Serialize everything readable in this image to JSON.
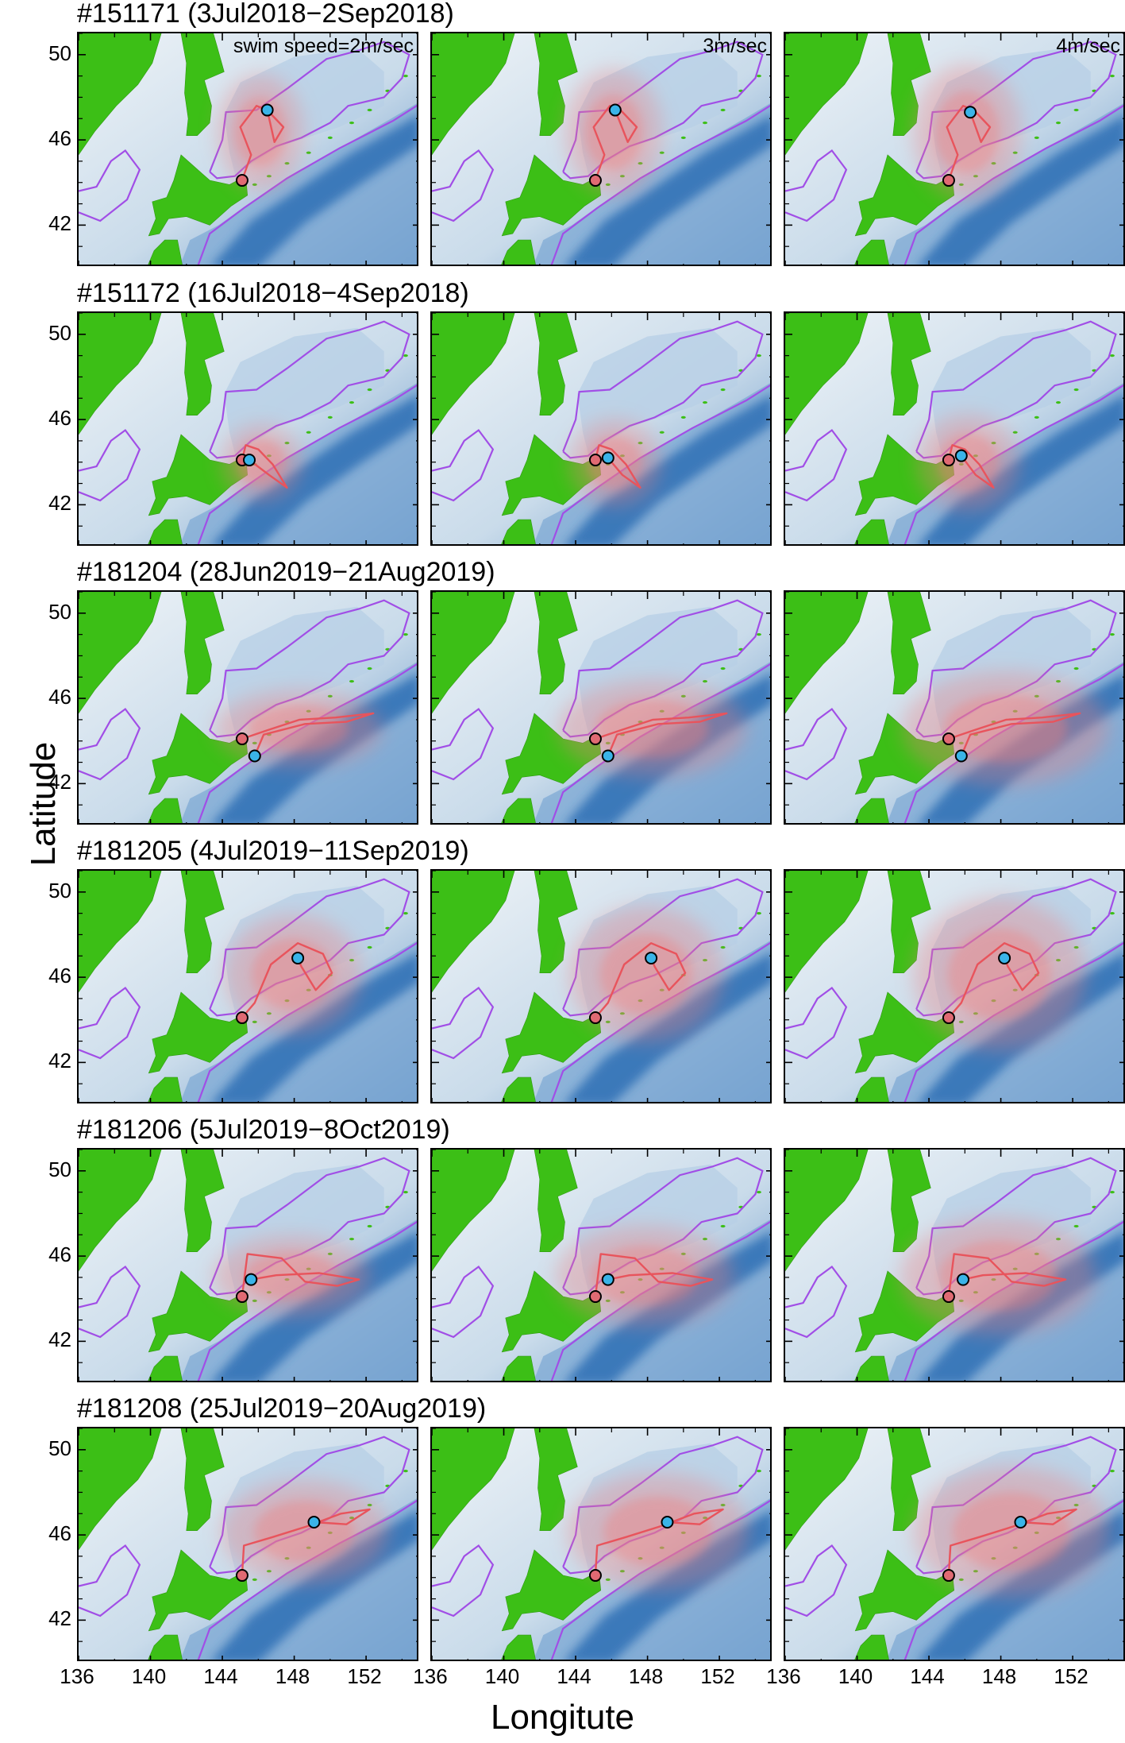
{
  "figure": {
    "xlabel": "Longitute",
    "ylabel": "Latitude",
    "speed_labels": [
      "swim speed=2m/sec",
      "3m/sec",
      "4m/sec"
    ],
    "xticks": [
      "136",
      "140",
      "144",
      "148",
      "152"
    ],
    "yticks": [
      "50",
      "46",
      "42"
    ]
  },
  "colors": {
    "land": "#3cbf16",
    "shallow_sea": "#dde9f2",
    "deep_sea": "#2f6fb5",
    "contour": "#a14ee6",
    "track": "#e8545c",
    "density": "#f08080",
    "start_marker": "#e06a73",
    "end_marker": "#3ab4e8"
  },
  "chart_data": {
    "type": "scatter",
    "title": "",
    "xlabel": "Longitute",
    "ylabel": "Latitude",
    "xlim": [
      136,
      155
    ],
    "ylim": [
      40,
      51
    ],
    "grid": false,
    "columns": [
      "swim speed=2m/sec",
      "3m/sec",
      "4m/sec"
    ],
    "rows": [
      {
        "title": "#151171 (3Jul2018−2Sep2018)",
        "start": [
          145.1,
          44.1
        ],
        "end": [
          [
            146.5,
            47.4
          ],
          [
            146.2,
            47.4
          ],
          [
            146.3,
            47.3
          ]
        ],
        "track": [
          [
            145.1,
            44.1
          ],
          [
            145.6,
            45.3
          ],
          [
            145.0,
            46.6
          ],
          [
            145.9,
            47.6
          ],
          [
            146.5,
            47.4
          ],
          [
            147.4,
            46.6
          ],
          [
            146.9,
            45.9
          ],
          [
            146.5,
            47.4
          ]
        ],
        "spread": [
          1.2,
          1.5,
          1.8
        ]
      },
      {
        "title": "#151172 (16Jul2018−4Sep2018)",
        "start": [
          145.1,
          44.1
        ],
        "end": [
          [
            145.5,
            44.1
          ],
          [
            145.8,
            44.2
          ],
          [
            145.8,
            44.3
          ]
        ],
        "track": [
          [
            145.1,
            44.1
          ],
          [
            145.3,
            44.8
          ],
          [
            146.0,
            44.6
          ],
          [
            146.8,
            43.9
          ],
          [
            147.6,
            42.8
          ],
          [
            146.6,
            43.4
          ],
          [
            145.8,
            44.2
          ]
        ],
        "spread": [
          1.0,
          1.3,
          1.6
        ]
      },
      {
        "title": "#181204 (28Jun2019−21Aug2019)",
        "start": [
          145.1,
          44.1
        ],
        "end": [
          [
            145.8,
            43.3
          ],
          [
            145.8,
            43.3
          ],
          [
            145.8,
            43.3
          ]
        ],
        "track": [
          [
            145.1,
            44.1
          ],
          [
            146.5,
            44.5
          ],
          [
            148.3,
            45.0
          ],
          [
            150.3,
            45.1
          ],
          [
            152.4,
            45.3
          ],
          [
            150.9,
            44.9
          ],
          [
            148.6,
            44.8
          ],
          [
            146.3,
            44.3
          ],
          [
            145.8,
            43.3
          ]
        ],
        "spread": [
          1.0,
          1.6,
          2.1
        ]
      },
      {
        "title": "#181205 (4Jul2019−11Sep2019)",
        "start": [
          145.1,
          44.1
        ],
        "end": [
          [
            148.2,
            46.9
          ],
          [
            148.2,
            46.9
          ],
          [
            148.2,
            46.9
          ]
        ],
        "track": [
          [
            145.1,
            44.1
          ],
          [
            145.8,
            44.8
          ],
          [
            146.7,
            46.6
          ],
          [
            148.2,
            47.6
          ],
          [
            149.6,
            47.1
          ],
          [
            150.1,
            46.2
          ],
          [
            149.2,
            45.4
          ],
          [
            148.4,
            46.5
          ],
          [
            148.2,
            46.9
          ]
        ],
        "spread": [
          1.3,
          1.8,
          2.3
        ]
      },
      {
        "title": "#181206 (5Jul2019−8Oct2019)",
        "start": [
          145.1,
          44.1
        ],
        "end": [
          [
            145.6,
            44.9
          ],
          [
            145.8,
            44.9
          ],
          [
            145.9,
            44.9
          ]
        ],
        "track": [
          [
            145.1,
            44.1
          ],
          [
            145.4,
            46.1
          ],
          [
            147.3,
            45.9
          ],
          [
            148.6,
            44.8
          ],
          [
            150.4,
            44.6
          ],
          [
            151.6,
            44.9
          ],
          [
            149.4,
            45.2
          ],
          [
            147.0,
            45.1
          ],
          [
            145.8,
            44.9
          ]
        ],
        "spread": [
          1.1,
          1.7,
          2.2
        ]
      },
      {
        "title": "#181208 (25Jul2019−20Aug2019)",
        "start": [
          145.1,
          44.1
        ],
        "end": [
          [
            149.1,
            46.6
          ],
          [
            149.1,
            46.6
          ],
          [
            149.1,
            46.6
          ]
        ],
        "track": [
          [
            145.1,
            44.1
          ],
          [
            145.2,
            45.5
          ],
          [
            146.8,
            45.9
          ],
          [
            148.7,
            46.4
          ],
          [
            150.6,
            47.0
          ],
          [
            152.2,
            47.2
          ],
          [
            150.9,
            46.5
          ],
          [
            149.1,
            46.6
          ]
        ],
        "spread": [
          1.1,
          1.5,
          1.9
        ]
      }
    ]
  }
}
